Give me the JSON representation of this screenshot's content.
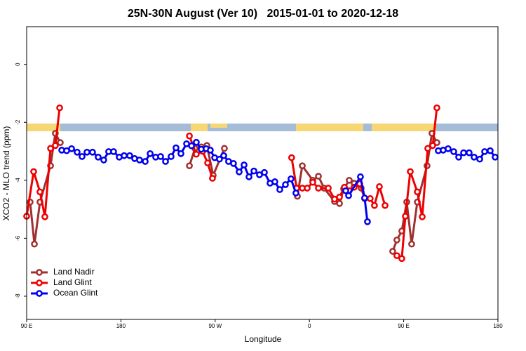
{
  "chart_data": {
    "type": "line",
    "title": "25N-30N August (Ver 10)   2015-01-01 to 2020-12-18",
    "x_label": "Longitude",
    "y_label": "XCO2 - MLO trend (ppm)",
    "xlim": [
      90,
      540
    ],
    "ylim": [
      -8.8,
      1.3
    ],
    "xticks": [
      {
        "value": 90,
        "label": "90 E"
      },
      {
        "value": 180,
        "label": "180"
      },
      {
        "value": 270,
        "label": "90 W"
      },
      {
        "value": 360,
        "label": "0"
      },
      {
        "value": 450,
        "label": "90 E"
      },
      {
        "value": 540,
        "label": "180"
      }
    ],
    "yticks": [
      0,
      -2,
      -4,
      -6,
      -8
    ],
    "grid": false,
    "legend": "bottom-left",
    "series": [
      {
        "name": "Land Nadir",
        "color": "#a0302f",
        "x": [
          93.3,
          97.4,
          102.7,
          112.8,
          117.4,
          122.1,
          null,
          245.4,
          250.7,
          256.7,
          262.1,
          268.1,
          278.8,
          null,
          348.5,
          353.2,
          363.2,
          368.6,
          373.9,
          384,
          388.7,
          392.7,
          398,
          402.7,
          409.4,
          null,
          439.5,
          443.5,
          448.2,
          452.9,
          457.6,
          463,
          472.3,
          477,
          481.7
        ],
        "values": [
          -4.75,
          -6.2,
          -4.75,
          -3.5,
          -2.38,
          -2.7,
          null,
          -3.5,
          -2.9,
          -2.85,
          -2.8,
          -3.83,
          -2.9,
          null,
          -4.55,
          -3.5,
          -4.0,
          -3.86,
          -4.27,
          -4.73,
          -4.8,
          -4.3,
          -4.0,
          -4.1,
          -4.27,
          null,
          -6.45,
          -6.06,
          -5.75,
          -4.75,
          -6.2,
          -4.75,
          -3.5,
          -2.38,
          -2.7
        ]
      },
      {
        "name": "Land Glint",
        "color": "#ee0000",
        "x": [
          90,
          96.7,
          102.7,
          107.4,
          112.8,
          117.4,
          121.5,
          null,
          245.4,
          252,
          258,
          262.8,
          267.4,
          null,
          343,
          347.8,
          353.2,
          357.9,
          363.2,
          368.6,
          378,
          384,
          388.7,
          393.4,
          398,
          402.7,
          408,
          412.7,
          418,
          422.1,
          426.8,
          432.2,
          null,
          443.5,
          448.2,
          451.6,
          456.3,
          463,
          467.7,
          473,
          477.7,
          481.7
        ],
        "values": [
          -5.24,
          -3.7,
          -4.4,
          -5.26,
          -2.9,
          -2.8,
          -1.5,
          null,
          -2.47,
          -3.1,
          -3.0,
          -3.4,
          -3.93,
          null,
          -3.22,
          -4.27,
          -4.27,
          -4.27,
          -4.07,
          -4.27,
          -4.27,
          -4.65,
          -4.58,
          -4.24,
          -4.36,
          -4.24,
          -4.12,
          -4.63,
          -4.63,
          -4.87,
          -4.22,
          -4.87,
          null,
          -6.6,
          -6.7,
          -5.24,
          -3.7,
          -4.4,
          -5.26,
          -2.9,
          -2.8,
          -1.5
        ]
      },
      {
        "name": "Ocean Glint",
        "color": "#0000ee",
        "x": [
          123.5,
          128.2,
          132.9,
          138.2,
          142.9,
          147.6,
          152.9,
          158.3,
          163.6,
          168.3,
          173,
          178.4,
          183.1,
          188.4,
          193.1,
          197.8,
          203.2,
          207.9,
          213.2,
          217.9,
          222.6,
          227.9,
          232.6,
          237.3,
          242.7,
          247.4,
          252,
          256.7,
          261.4,
          265.4,
          269.5,
          274.1,
          278.2,
          282.8,
          287.5,
          292.9,
          297.6,
          302.3,
          307,
          312.3,
          317,
          322.4,
          327,
          331.7,
          337.1,
          342.4,
          347.1,
          null,
          394.7,
          397.4,
          408.7,
          412.7,
          415.4,
          null,
          483,
          487.7,
          492.4,
          497.8,
          502.5,
          507.2,
          512.5,
          517.2,
          522.6,
          527.3,
          532.6,
          537.3
        ],
        "values": [
          -2.96,
          -2.98,
          -2.91,
          -3.03,
          -3.18,
          -3.03,
          -3.03,
          -3.2,
          -3.3,
          -3.01,
          -3.01,
          -3.2,
          -3.15,
          -3.15,
          -3.25,
          -3.3,
          -3.35,
          -3.08,
          -3.2,
          -3.18,
          -3.35,
          -3.18,
          -2.88,
          -3.08,
          -2.74,
          -2.81,
          -2.69,
          -2.93,
          -2.91,
          -2.96,
          -3.22,
          -3.27,
          -3.15,
          -3.35,
          -3.42,
          -3.71,
          -3.47,
          -3.88,
          -3.68,
          -3.81,
          -3.73,
          -4.1,
          -4.05,
          -4.32,
          -4.15,
          -3.95,
          -4.44,
          null,
          -4.36,
          -4.53,
          -3.88,
          -4.61,
          -5.43,
          null,
          -2.98,
          -2.96,
          -2.91,
          -3.01,
          -3.2,
          -3.05,
          -3.05,
          -3.2,
          -3.27,
          -3.01,
          -2.98,
          -3.2
        ]
      }
    ]
  }
}
